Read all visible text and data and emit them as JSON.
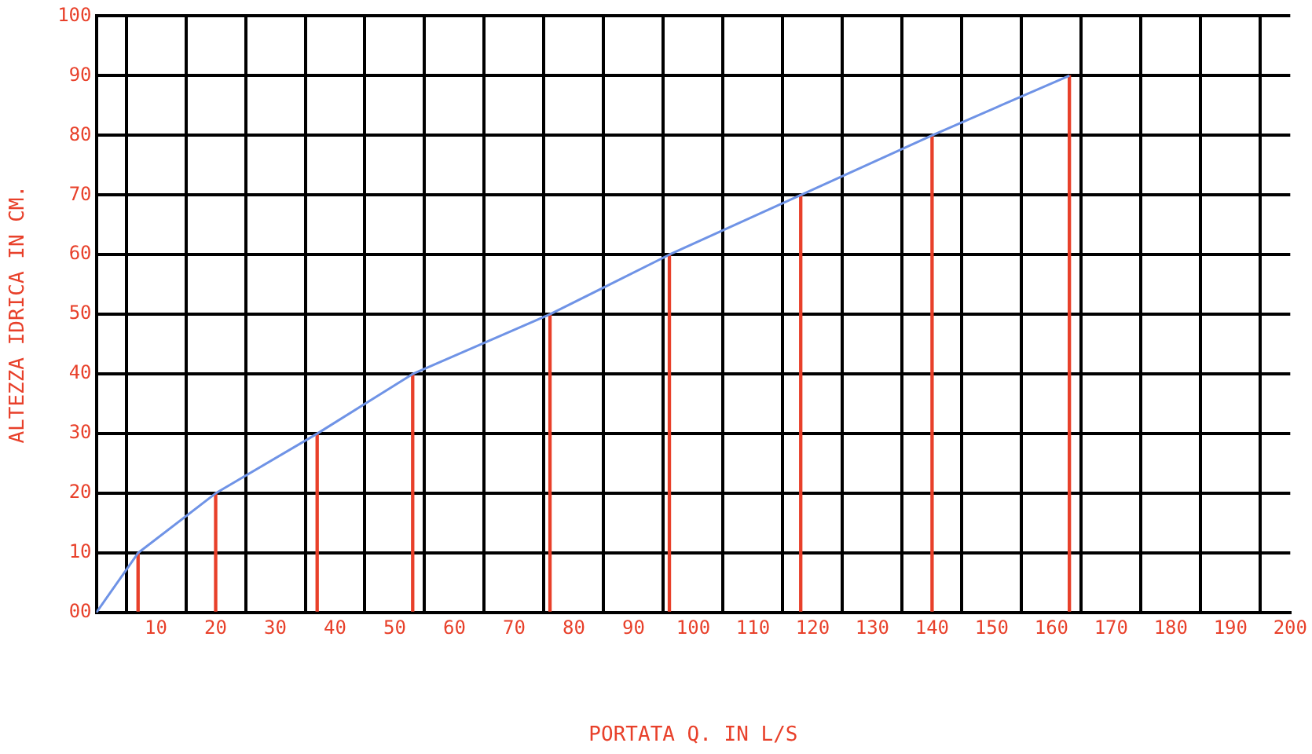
{
  "chart_data": {
    "type": "line",
    "xlabel": "PORTATA Q. IN L/S",
    "ylabel": "ALTEZZA IDRICA IN CM.",
    "series": [
      {
        "color": "#6f93e6",
        "x": [
          0,
          7,
          20,
          37,
          53,
          76,
          96,
          118,
          140,
          163
        ],
        "values": [
          0,
          10,
          20,
          30,
          40,
          50,
          60,
          70,
          80,
          90
        ]
      },
      {
        "type": "bar",
        "color": "#e8402a",
        "x": [
          7,
          20,
          37,
          53,
          76,
          96,
          118,
          140,
          163
        ],
        "values": [
          10,
          20,
          30,
          40,
          50,
          60,
          70,
          80,
          90
        ]
      }
    ],
    "xlim": [
      0,
      200
    ],
    "ylim": [
      0,
      100
    ],
    "xticks": [
      {
        "value": 0,
        "label": null
      },
      10,
      20,
      30,
      40,
      50,
      60,
      70,
      80,
      90,
      100,
      110,
      120,
      130,
      140,
      150,
      160,
      170,
      180,
      190,
      200
    ],
    "yticks": [
      {
        "value": 0,
        "label": "00"
      },
      10,
      20,
      30,
      40,
      50,
      60,
      70,
      80,
      90,
      100
    ],
    "grid": true,
    "marker": "none",
    "line_style": "solid"
  }
}
